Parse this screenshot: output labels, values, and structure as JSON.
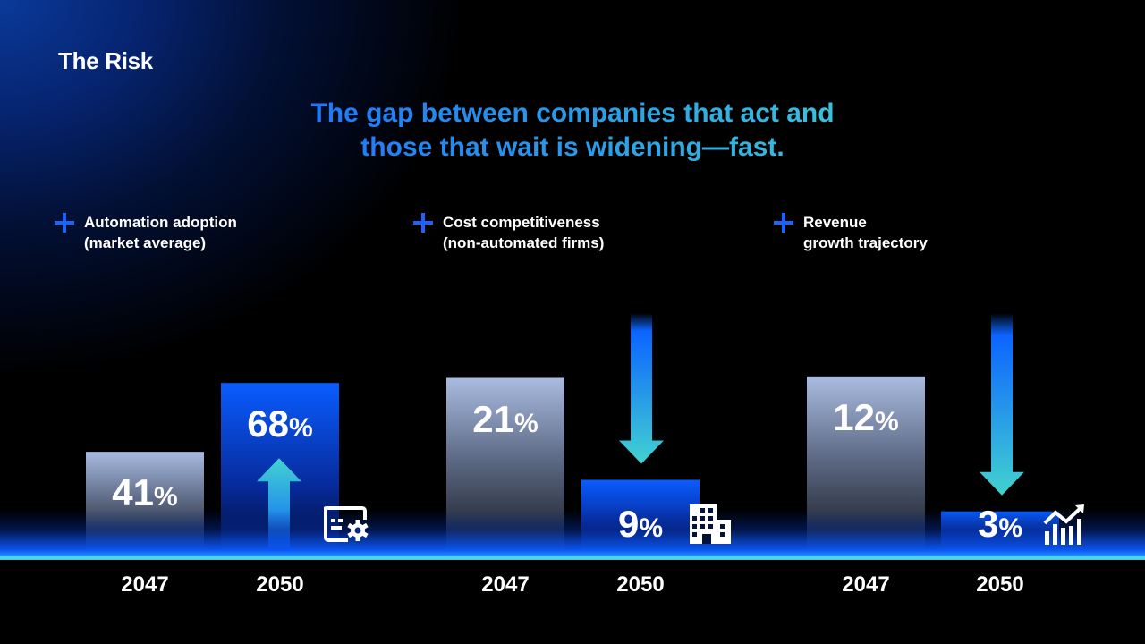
{
  "slide": {
    "kicker": "The Risk",
    "headline_line1": "The gap between companies that act and",
    "headline_line2": "those that wait is widening—fast."
  },
  "colors": {
    "accent_blue": "#1a63ff",
    "teal": "#3fd0d6",
    "bar_before_top": "#a9bbe0",
    "bar_after": "#0a5cff"
  },
  "chart_data": [
    {
      "type": "bar",
      "title": "Automation adoption (market average)",
      "title_line1": "Automation adoption",
      "title_line2": "(market average)",
      "categories": [
        "2047",
        "2050"
      ],
      "values": [
        41,
        68
      ],
      "labels": [
        "41",
        "68"
      ],
      "unit": "%",
      "trend": "up",
      "icon": "dashboard-settings-icon",
      "ylim": [
        0,
        100
      ]
    },
    {
      "type": "bar",
      "title": "Cost competitiveness (non-automated firms)",
      "title_line1": "Cost competitiveness",
      "title_line2": "(non-automated firms)",
      "categories": [
        "2047",
        "2050"
      ],
      "values": [
        21,
        9
      ],
      "labels": [
        "21",
        "9"
      ],
      "unit": "%",
      "trend": "down",
      "icon": "building-icon",
      "ylim": [
        0,
        30
      ]
    },
    {
      "type": "bar",
      "title": "Revenue growth trajectory",
      "title_line1": "Revenue",
      "title_line2": "growth trajectory",
      "categories": [
        "2047",
        "2050"
      ],
      "values": [
        12,
        3
      ],
      "labels": [
        "12",
        "3"
      ],
      "unit": "%",
      "trend": "down",
      "icon": "growth-chart-icon",
      "ylim": [
        0,
        17
      ]
    }
  ]
}
